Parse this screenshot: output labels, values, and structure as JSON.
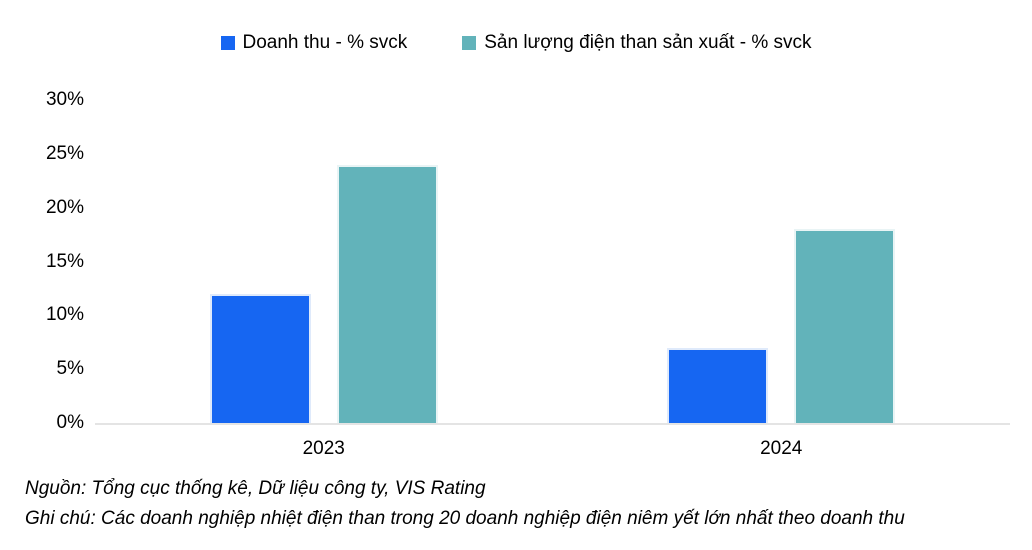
{
  "chart_data": {
    "type": "bar",
    "categories": [
      "2023",
      "2024"
    ],
    "series": [
      {
        "name": "Doanh thu - % svck",
        "color": "#1666F2",
        "border_color": "#dfeafb",
        "values": [
          12,
          7
        ]
      },
      {
        "name": "Sản lượng điện than sản xuất - % svck",
        "color": "#62B3BA",
        "border_color": "#e9f4f5",
        "values": [
          24,
          18
        ]
      }
    ],
    "title": "",
    "xlabel": "",
    "ylabel": "",
    "ylim": [
      0,
      30
    ],
    "yticks": [
      "0%",
      "5%",
      "10%",
      "15%",
      "20%",
      "25%",
      "30%"
    ],
    "grid": false,
    "legend_position": "top",
    "unit": "%"
  },
  "footer": {
    "source": "Nguồn: Tổng cục thống kê, Dữ liệu công ty, VIS Rating",
    "note": "Ghi chú: Các doanh nghiệp nhiệt điện than trong 20 doanh nghiệp điện niêm yết lớn nhất theo doanh thu"
  },
  "colors": {
    "axis_line": "#e4e4e4",
    "text": "#000000",
    "background": "#ffffff"
  }
}
